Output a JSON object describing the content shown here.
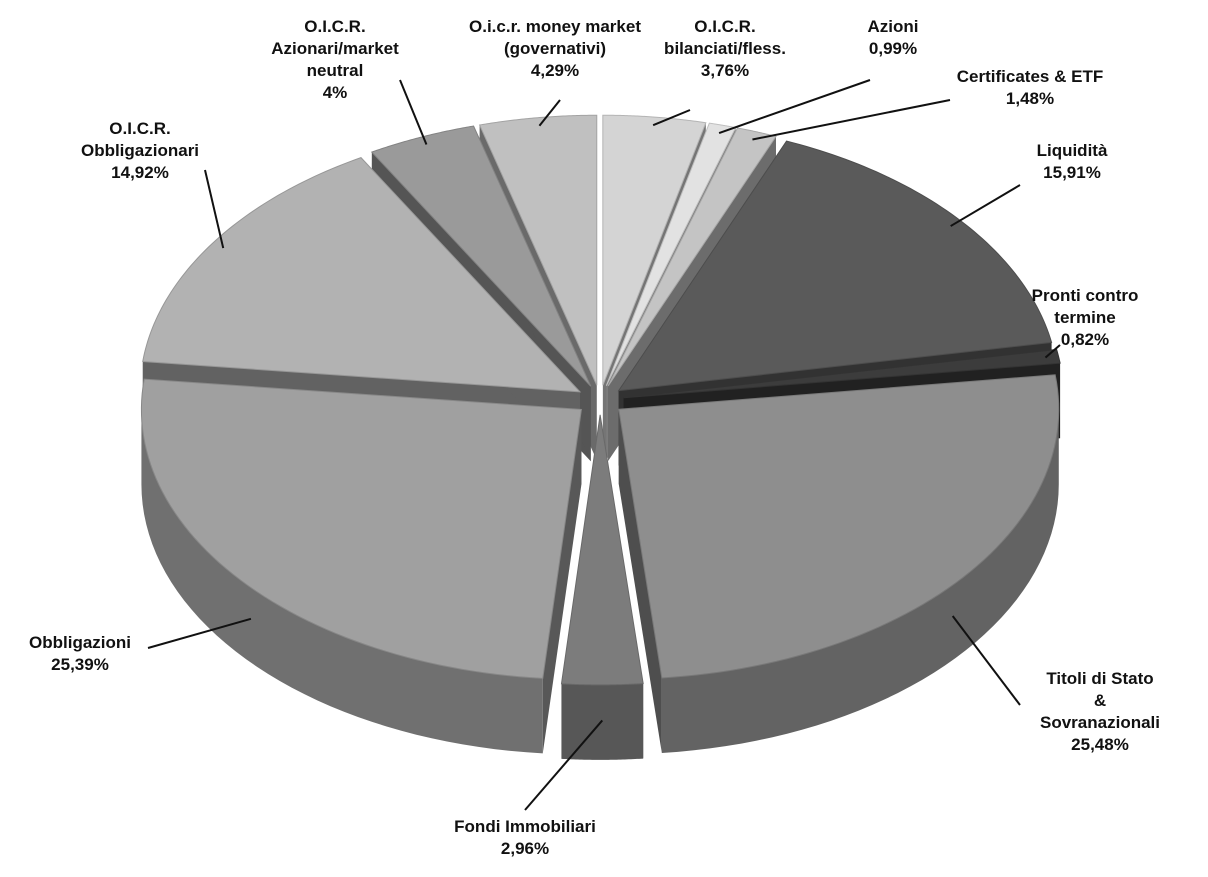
{
  "chart_data": {
    "type": "pie3d",
    "categories": [
      "O.I.C.R.\nbilanciati/fless.",
      "Azioni",
      "Certificates & ETF",
      "Liquidità",
      "Pronti contro termine",
      "Titoli di Stato &\nSovranazionali",
      "Fondi Immobiliari",
      "Obbligazioni",
      "O.I.C.R.\nObbligazionari",
      "O.I.C.R.\nAzionari/market\nneutral",
      "O.i.c.r. money market\n(governativi)"
    ],
    "values": [
      3.76,
      0.99,
      1.48,
      15.91,
      0.82,
      25.48,
      2.96,
      25.39,
      14.92,
      4,
      4.29
    ],
    "value_labels": [
      "3,76%",
      "0,99%",
      "1,48%",
      "15,91%",
      "0,82%",
      "25,48%",
      "2,96%",
      "25,39%",
      "14,92%",
      "4%",
      "4,29%"
    ],
    "colors": [
      "#d4d4d4",
      "#e2e2e2",
      "#c4c4c4",
      "#5a5a5a",
      "#3c3c3c",
      "#8e8e8e",
      "#7c7c7c",
      "#a0a0a0",
      "#b2b2b2",
      "#9a9a9a",
      "#c0c0c0"
    ]
  }
}
